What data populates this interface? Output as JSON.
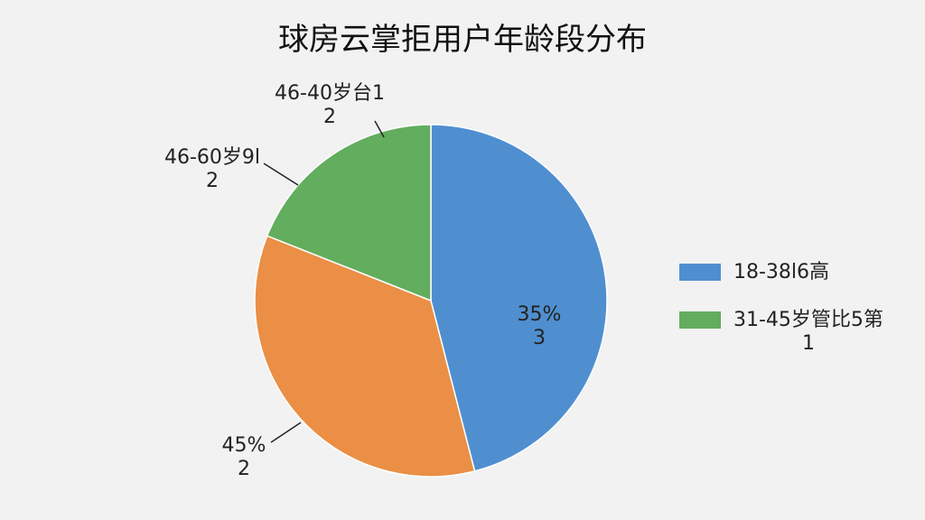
{
  "chart_data": {
    "type": "pie",
    "title": "球房云掌拒用户年龄段分布",
    "categories": [
      "18-38l6高",
      null,
      "31-45岁管比5第\n1"
    ],
    "values": [
      46,
      35,
      19
    ],
    "colors": [
      "#4f8fd0",
      "#ea8f45",
      "#62ad5e"
    ],
    "annotations": [
      "35%\n3",
      "45%\n2",
      "46-40岁台1\n2",
      "46-60岁9l\n2"
    ]
  }
}
